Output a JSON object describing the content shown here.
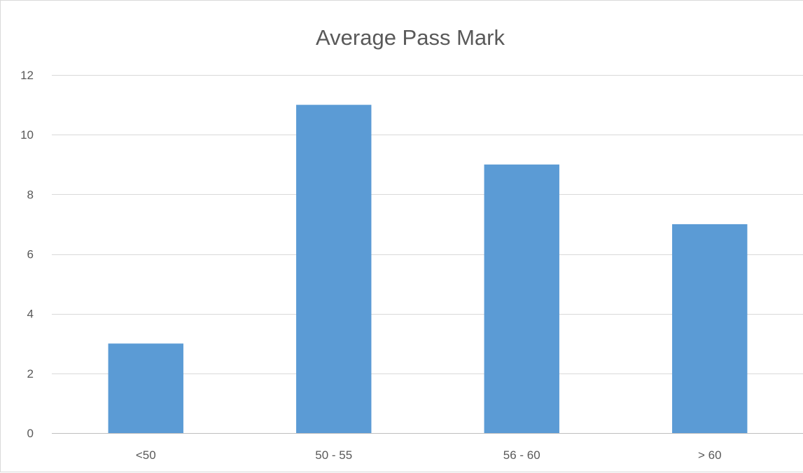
{
  "chart_data": {
    "type": "bar",
    "title": "Average Pass Mark",
    "categories": [
      "<50",
      "50 - 55",
      "56 - 60",
      "> 60"
    ],
    "values": [
      3,
      11,
      9,
      7
    ],
    "xlabel": "",
    "ylabel": "",
    "ylim": [
      0,
      12
    ],
    "yticks": [
      0,
      2,
      4,
      6,
      8,
      10,
      12
    ],
    "grid": true,
    "legend": "none",
    "bar_color": "#5b9bd5"
  }
}
